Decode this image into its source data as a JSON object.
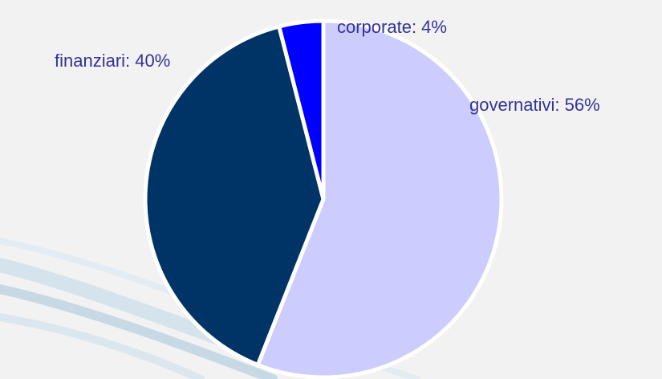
{
  "chart_data": {
    "type": "pie",
    "categories": [
      "governativi",
      "finanziari",
      "corporate"
    ],
    "values": [
      56,
      40,
      4
    ],
    "value_labels": [
      "governativi: 56%",
      "finanziari: 40%",
      "corporate: 4%"
    ],
    "colors": [
      "#ccccff",
      "#003366",
      "#0000ff"
    ]
  }
}
